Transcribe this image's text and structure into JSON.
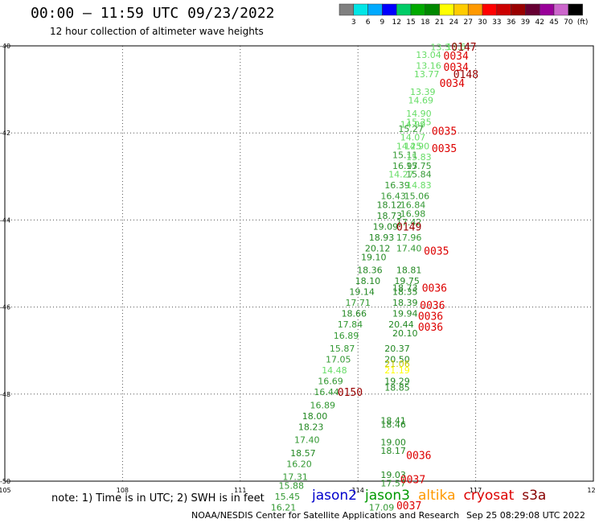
{
  "header": {
    "title": "00:00 — 11:59 UTC 09/23/2022",
    "subtitle": "12 hour collection of altimeter wave heights"
  },
  "colorbar": {
    "colors": [
      "#808080",
      "#00e6e6",
      "#00aaff",
      "#0000ff",
      "#00cc66",
      "#00aa00",
      "#008800",
      "#ffff00",
      "#ffcc00",
      "#ff9900",
      "#ff0000",
      "#cc0000",
      "#990000",
      "#660033",
      "#990099",
      "#cc66cc",
      "#000000"
    ],
    "labels": [
      "3",
      "6",
      "9",
      "12",
      "15",
      "18",
      "21",
      "24",
      "27",
      "30",
      "33",
      "36",
      "39",
      "42",
      "45",
      "70",
      "(ft)"
    ]
  },
  "footer": {
    "note": "note: 1) Time is in UTC; 2) SWH is in feet",
    "credit": "NOAA/NESDIS Center for Satellite Applications and Research",
    "timestamp": "Sep 25 08:29:08 UTC 2022",
    "legend": [
      {
        "name": "jason2",
        "color": "#0000cc"
      },
      {
        "name": "jason3",
        "color": "#009900"
      },
      {
        "name": "altika",
        "color": "#ff9900"
      },
      {
        "name": "cryosat",
        "color": "#dd0000"
      },
      {
        "name": "s3a",
        "color": "#880000"
      }
    ]
  },
  "chart_data": {
    "type": "scatter",
    "xlim": [
      105,
      120
    ],
    "ylim": [
      -50,
      -40
    ],
    "x_ticks": [
      "105",
      "108",
      "111",
      "114",
      "117",
      "120"
    ],
    "y_ticks": [
      "-40",
      "-42",
      "-44",
      "-46",
      "-48",
      "-50"
    ],
    "grid": true,
    "points": [
      {
        "x": 116.1,
        "y": -40.03,
        "label": "13.3",
        "color": "#66dd66"
      },
      {
        "x": 116.5,
        "y": -40.02,
        "label": "13.6",
        "color": "#66dd66"
      },
      {
        "x": 115.8,
        "y": -40.2,
        "label": "13.04",
        "color": "#66dd66"
      },
      {
        "x": 115.8,
        "y": -40.45,
        "label": "13.16",
        "color": "#66dd66"
      },
      {
        "x": 115.75,
        "y": -40.65,
        "label": "13.77",
        "color": "#66dd66"
      },
      {
        "x": 115.65,
        "y": -41.05,
        "label": "13.39",
        "color": "#66dd66"
      },
      {
        "x": 115.6,
        "y": -41.25,
        "label": "14.69",
        "color": "#66dd66"
      },
      {
        "x": 115.55,
        "y": -41.55,
        "label": "14.90",
        "color": "#66dd66"
      },
      {
        "x": 115.55,
        "y": -41.75,
        "label": "15.25",
        "color": "#66dd66"
      },
      {
        "x": 115.4,
        "y": -41.8,
        "label": "14.99",
        "color": "#66dd66"
      },
      {
        "x": 115.35,
        "y": -41.9,
        "label": "15.27",
        "color": "#339933"
      },
      {
        "x": 115.4,
        "y": -42.1,
        "label": "14.07",
        "color": "#66dd66"
      },
      {
        "x": 115.3,
        "y": -42.3,
        "label": "14.25",
        "color": "#66dd66"
      },
      {
        "x": 115.5,
        "y": -42.3,
        "label": "14.90",
        "color": "#66dd66"
      },
      {
        "x": 115.2,
        "y": -42.5,
        "label": "15.11",
        "color": "#339933"
      },
      {
        "x": 115.55,
        "y": -42.55,
        "label": "15.83",
        "color": "#66dd66"
      },
      {
        "x": 115.2,
        "y": -42.75,
        "label": "16.97",
        "color": "#339933"
      },
      {
        "x": 115.55,
        "y": -42.75,
        "label": "15.75",
        "color": "#339933"
      },
      {
        "x": 115.1,
        "y": -42.95,
        "label": "14.27",
        "color": "#66dd66"
      },
      {
        "x": 115.55,
        "y": -42.95,
        "label": "15.84",
        "color": "#339933"
      },
      {
        "x": 115.0,
        "y": -43.2,
        "label": "16.39",
        "color": "#339933"
      },
      {
        "x": 115.55,
        "y": -43.2,
        "label": "14.83",
        "color": "#66dd66"
      },
      {
        "x": 114.9,
        "y": -43.45,
        "label": "16.43",
        "color": "#339933"
      },
      {
        "x": 115.5,
        "y": -43.45,
        "label": "15.06",
        "color": "#339933"
      },
      {
        "x": 114.8,
        "y": -43.65,
        "label": "18.12",
        "color": "#228822"
      },
      {
        "x": 115.4,
        "y": -43.65,
        "label": "16.84",
        "color": "#339933"
      },
      {
        "x": 114.8,
        "y": -43.9,
        "label": "18.73",
        "color": "#228822"
      },
      {
        "x": 115.4,
        "y": -43.85,
        "label": "16.98",
        "color": "#339933"
      },
      {
        "x": 114.7,
        "y": -44.15,
        "label": "19.09",
        "color": "#228822"
      },
      {
        "x": 115.3,
        "y": -44.05,
        "label": "17.42",
        "color": "#339933"
      },
      {
        "x": 114.6,
        "y": -44.4,
        "label": "18.93",
        "color": "#228822"
      },
      {
        "x": 115.3,
        "y": -44.4,
        "label": "17.96",
        "color": "#339933"
      },
      {
        "x": 114.5,
        "y": -44.65,
        "label": "20.12",
        "color": "#228822"
      },
      {
        "x": 115.3,
        "y": -44.65,
        "label": "17.40",
        "color": "#339933"
      },
      {
        "x": 114.4,
        "y": -44.85,
        "label": "19.10",
        "color": "#228822"
      },
      {
        "x": 114.3,
        "y": -45.15,
        "label": "18.36",
        "color": "#228822"
      },
      {
        "x": 115.3,
        "y": -45.15,
        "label": "18.81",
        "color": "#228822"
      },
      {
        "x": 114.25,
        "y": -45.4,
        "label": "18.10",
        "color": "#228822"
      },
      {
        "x": 115.25,
        "y": -45.4,
        "label": "19.75",
        "color": "#228822"
      },
      {
        "x": 115.2,
        "y": -45.55,
        "label": "18.73",
        "color": "#228822"
      },
      {
        "x": 114.1,
        "y": -45.65,
        "label": "19.14",
        "color": "#228822"
      },
      {
        "x": 115.2,
        "y": -45.65,
        "label": "18.35",
        "color": "#228822"
      },
      {
        "x": 114.0,
        "y": -45.9,
        "label": "17.71",
        "color": "#339933"
      },
      {
        "x": 115.2,
        "y": -45.9,
        "label": "18.39",
        "color": "#228822"
      },
      {
        "x": 113.9,
        "y": -46.15,
        "label": "18.66",
        "color": "#228822"
      },
      {
        "x": 115.2,
        "y": -46.15,
        "label": "19.94",
        "color": "#228822"
      },
      {
        "x": 113.8,
        "y": -46.4,
        "label": "17.84",
        "color": "#339933"
      },
      {
        "x": 115.1,
        "y": -46.4,
        "label": "20.44",
        "color": "#228822"
      },
      {
        "x": 113.7,
        "y": -46.65,
        "label": "16.89",
        "color": "#339933"
      },
      {
        "x": 115.2,
        "y": -46.6,
        "label": "20.10",
        "color": "#228822"
      },
      {
        "x": 113.6,
        "y": -46.95,
        "label": "15.87",
        "color": "#339933"
      },
      {
        "x": 115.0,
        "y": -46.95,
        "label": "20.37",
        "color": "#228822"
      },
      {
        "x": 113.5,
        "y": -47.2,
        "label": "17.05",
        "color": "#339933"
      },
      {
        "x": 115.0,
        "y": -47.2,
        "label": "20.50",
        "color": "#228822"
      },
      {
        "x": 115.0,
        "y": -47.3,
        "label": "21.06",
        "color": "#cccc00"
      },
      {
        "x": 113.4,
        "y": -47.45,
        "label": "14.48",
        "color": "#66dd66"
      },
      {
        "x": 115.0,
        "y": -47.45,
        "label": "21.19",
        "color": "#ffff00"
      },
      {
        "x": 113.3,
        "y": -47.7,
        "label": "16.69",
        "color": "#339933"
      },
      {
        "x": 115.0,
        "y": -47.7,
        "label": "19.29",
        "color": "#228822"
      },
      {
        "x": 113.2,
        "y": -47.95,
        "label": "16.44",
        "color": "#339933"
      },
      {
        "x": 115.0,
        "y": -47.85,
        "label": "18.85",
        "color": "#228822"
      },
      {
        "x": 113.1,
        "y": -48.25,
        "label": "16.89",
        "color": "#339933"
      },
      {
        "x": 112.9,
        "y": -48.5,
        "label": "18.00",
        "color": "#228822"
      },
      {
        "x": 114.9,
        "y": -48.6,
        "label": "18.41",
        "color": "#228822"
      },
      {
        "x": 114.9,
        "y": -48.7,
        "label": "18.46",
        "color": "#228822"
      },
      {
        "x": 112.8,
        "y": -48.75,
        "label": "18.23",
        "color": "#228822"
      },
      {
        "x": 112.7,
        "y": -49.05,
        "label": "17.40",
        "color": "#339933"
      },
      {
        "x": 114.9,
        "y": -49.1,
        "label": "19.00",
        "color": "#228822"
      },
      {
        "x": 112.6,
        "y": -49.35,
        "label": "18.57",
        "color": "#228822"
      },
      {
        "x": 114.9,
        "y": -49.3,
        "label": "18.17",
        "color": "#228822"
      },
      {
        "x": 112.5,
        "y": -49.6,
        "label": "16.20",
        "color": "#339933"
      },
      {
        "x": 112.4,
        "y": -49.9,
        "label": "17.31",
        "color": "#339933"
      },
      {
        "x": 114.9,
        "y": -49.85,
        "label": "19.03",
        "color": "#228822"
      },
      {
        "x": 112.3,
        "y": -50.1,
        "label": "15.88",
        "color": "#339933"
      },
      {
        "x": 114.9,
        "y": -50.05,
        "label": "17.57",
        "color": "#339933"
      },
      {
        "x": 112.2,
        "y": -50.35,
        "label": "15.45",
        "color": "#339933"
      },
      {
        "x": 112.1,
        "y": -50.6,
        "label": "16.21",
        "color": "#339933"
      },
      {
        "x": 114.6,
        "y": -50.6,
        "label": "17.09",
        "color": "#339933"
      }
    ],
    "time_labels": [
      {
        "x": 116.7,
        "y": -40.02,
        "label": "0147",
        "color": "#990000"
      },
      {
        "x": 116.5,
        "y": -40.22,
        "label": "0034",
        "color": "#dd0000"
      },
      {
        "x": 116.5,
        "y": -40.48,
        "label": "0034",
        "color": "#dd0000"
      },
      {
        "x": 116.75,
        "y": -40.65,
        "label": "0148",
        "color": "#990000"
      },
      {
        "x": 116.4,
        "y": -40.85,
        "label": "0034",
        "color": "#dd0000"
      },
      {
        "x": 116.2,
        "y": -41.95,
        "label": "0035",
        "color": "#dd0000"
      },
      {
        "x": 116.2,
        "y": -42.35,
        "label": "0035",
        "color": "#dd0000"
      },
      {
        "x": 115.3,
        "y": -44.15,
        "label": "0149",
        "color": "#990000"
      },
      {
        "x": 116.0,
        "y": -44.7,
        "label": "0035",
        "color": "#dd0000"
      },
      {
        "x": 115.95,
        "y": -45.55,
        "label": "0036",
        "color": "#dd0000"
      },
      {
        "x": 115.9,
        "y": -45.95,
        "label": "0036",
        "color": "#dd0000"
      },
      {
        "x": 115.85,
        "y": -46.2,
        "label": "0036",
        "color": "#dd0000"
      },
      {
        "x": 115.85,
        "y": -46.45,
        "label": "0036",
        "color": "#dd0000"
      },
      {
        "x": 113.8,
        "y": -47.95,
        "label": "0150",
        "color": "#990000"
      },
      {
        "x": 115.55,
        "y": -49.4,
        "label": "0036",
        "color": "#dd0000"
      },
      {
        "x": 115.4,
        "y": -49.95,
        "label": "0037",
        "color": "#dd0000"
      },
      {
        "x": 115.3,
        "y": -50.55,
        "label": "0037",
        "color": "#dd0000"
      }
    ]
  }
}
